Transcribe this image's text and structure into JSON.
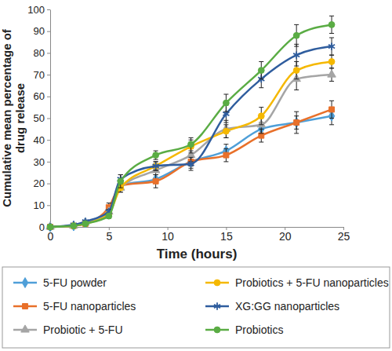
{
  "chart_data": {
    "type": "line",
    "x_label": "Time (hours)",
    "y_label": "Cumulative mean percentage of drug release",
    "x": [
      0,
      2,
      3,
      5,
      6,
      9,
      12,
      15,
      18,
      21,
      24
    ],
    "xlim": [
      0,
      25
    ],
    "xticks": [
      0,
      5,
      10,
      15,
      20,
      25
    ],
    "ylim": [
      0,
      100
    ],
    "yticks": [
      0,
      10,
      20,
      30,
      40,
      50,
      60,
      70,
      80,
      90,
      100
    ],
    "grid": false,
    "legend": "bottom",
    "line_style": "smooth",
    "series": [
      {
        "name": "5-FU powder",
        "color": "#4f9fd8",
        "marker": "diamond",
        "values": [
          0,
          0.5,
          2,
          8,
          19,
          22,
          30,
          35,
          45,
          48,
          51
        ],
        "errors": [
          0,
          0.3,
          0.5,
          1,
          2,
          2,
          2,
          3,
          3,
          3,
          4
        ]
      },
      {
        "name": "5-FU nanoparticles",
        "color": "#e8702a",
        "marker": "square",
        "values": [
          0,
          0.5,
          1.5,
          9,
          19,
          21,
          30,
          33,
          42,
          48,
          54
        ],
        "errors": [
          0,
          0.3,
          0.5,
          2,
          2,
          3,
          3,
          3,
          3,
          5,
          4
        ]
      },
      {
        "name": "Probiotic + 5-FU",
        "color": "#a5a5a5",
        "marker": "triangle",
        "values": [
          0,
          0.5,
          2,
          7,
          18,
          26,
          33,
          45,
          47,
          68,
          70
        ],
        "errors": [
          0,
          0.3,
          0.5,
          1,
          2,
          2,
          3,
          4,
          4,
          5,
          3
        ]
      },
      {
        "name": "Probiotics + 5-FU nanoparticles",
        "color": "#f5b800",
        "marker": "circle",
        "values": [
          0,
          0.5,
          1.5,
          6,
          18,
          28,
          37,
          44,
          51,
          72,
          76
        ],
        "errors": [
          0,
          0.3,
          0.5,
          1,
          2,
          2,
          3,
          3,
          4,
          4,
          3
        ]
      },
      {
        "name": "XG:GG nanoparticles",
        "color": "#2f5d9e",
        "marker": "asterisk",
        "values": [
          0,
          1,
          2.5,
          7,
          22,
          28,
          29,
          52,
          68,
          79,
          83
        ],
        "errors": [
          0,
          0.3,
          0.5,
          1,
          2,
          2,
          3,
          4,
          4,
          5,
          4
        ]
      },
      {
        "name": "Probiotics",
        "color": "#5aac44",
        "marker": "circle",
        "values": [
          0,
          0.5,
          1.5,
          5,
          21,
          33,
          38,
          57,
          72,
          88,
          93
        ],
        "errors": [
          0,
          0.3,
          0.5,
          1,
          3,
          2,
          3,
          4,
          4,
          5,
          4
        ]
      }
    ]
  }
}
